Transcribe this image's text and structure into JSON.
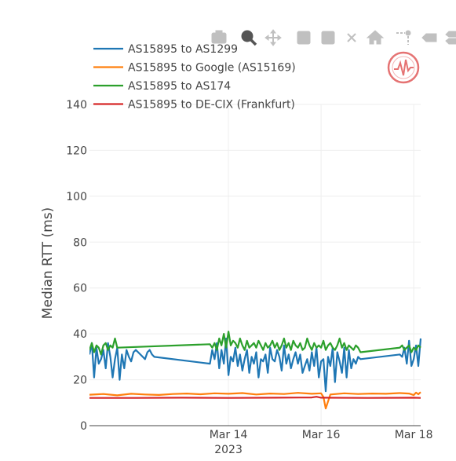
{
  "chart_data": {
    "type": "line",
    "title": "",
    "xlabel": "",
    "ylabel": "Median RTT (ms)",
    "ylim": [
      0,
      140
    ],
    "yticks": [
      0,
      20,
      40,
      60,
      80,
      100,
      120,
      140
    ],
    "xlim": [
      11.0,
      18.15
    ],
    "xticks": [
      {
        "value": 14,
        "label": "Mar 14",
        "sublabel": "2023"
      },
      {
        "value": 16,
        "label": "Mar 16",
        "sublabel": ""
      },
      {
        "value": 18,
        "label": "Mar 18",
        "sublabel": ""
      }
    ],
    "legend_position": "top-left",
    "series": [
      {
        "name": "AS15895 to AS1299",
        "color": "#1f77b4",
        "x": [
          11.0,
          11.05,
          11.1,
          11.15,
          11.2,
          11.25,
          11.3,
          11.35,
          11.4,
          11.45,
          11.5,
          11.55,
          11.6,
          11.65,
          11.7,
          11.75,
          11.8,
          11.85,
          11.9,
          11.95,
          12.0,
          12.05,
          12.1,
          12.15,
          12.2,
          12.25,
          12.3,
          12.35,
          12.4,
          13.6,
          13.65,
          13.7,
          13.75,
          13.8,
          13.85,
          13.9,
          13.95,
          14.0,
          14.05,
          14.1,
          14.15,
          14.2,
          14.25,
          14.3,
          14.35,
          14.4,
          14.45,
          14.5,
          14.55,
          14.6,
          14.65,
          14.7,
          14.75,
          14.8,
          14.85,
          14.9,
          14.95,
          15.0,
          15.05,
          15.1,
          15.15,
          15.2,
          15.25,
          15.3,
          15.35,
          15.4,
          15.45,
          15.5,
          15.55,
          15.6,
          15.65,
          15.7,
          15.75,
          15.8,
          15.85,
          15.9,
          15.95,
          16.0,
          16.05,
          16.1,
          16.15,
          16.2,
          16.25,
          16.3,
          16.35,
          16.4,
          16.45,
          16.5,
          16.55,
          16.6,
          16.65,
          16.7,
          16.75,
          16.8,
          16.85,
          17.7,
          17.75,
          17.8,
          17.85,
          17.9,
          17.95,
          18.0,
          18.05,
          18.1,
          18.15
        ],
        "values": [
          31,
          36,
          21,
          34,
          27,
          29,
          33,
          25,
          36,
          30,
          21,
          29,
          34,
          20,
          31,
          25,
          33,
          30,
          28,
          32,
          33,
          32,
          31,
          30,
          29,
          32,
          33,
          31,
          30,
          27,
          33,
          29,
          36,
          25,
          33,
          27,
          38,
          22,
          30,
          28,
          34,
          26,
          31,
          24,
          29,
          33,
          23,
          30,
          27,
          32,
          21,
          29,
          28,
          31,
          23,
          34,
          29,
          28,
          33,
          30,
          24,
          35,
          27,
          31,
          25,
          29,
          32,
          27,
          31,
          23,
          26,
          29,
          24,
          32,
          26,
          34,
          21,
          28,
          29,
          15,
          30,
          26,
          34,
          19,
          32,
          28,
          23,
          34,
          21,
          33,
          25,
          29,
          27,
          30,
          29,
          31,
          30,
          34,
          27,
          37,
          26,
          29,
          35,
          26,
          38
        ]
      },
      {
        "name": "AS15895 to Google (AS15169)",
        "color": "#ff7f0e",
        "x": [
          11.0,
          11.3,
          11.6,
          11.9,
          12.2,
          12.5,
          12.8,
          13.1,
          13.4,
          13.7,
          14.0,
          14.3,
          14.6,
          14.9,
          15.2,
          15.5,
          15.8,
          16.0,
          16.05,
          16.1,
          16.2,
          16.5,
          16.8,
          17.1,
          17.4,
          17.7,
          17.9,
          18.0,
          18.05,
          18.1,
          18.15
        ],
        "values": [
          13.5,
          13.8,
          13.2,
          13.9,
          13.6,
          13.4,
          13.8,
          14.0,
          13.7,
          14.1,
          13.9,
          14.2,
          13.6,
          14.0,
          13.8,
          14.3,
          13.9,
          14.1,
          12.5,
          7.5,
          13.6,
          14.1,
          13.8,
          14.0,
          13.9,
          14.2,
          14.0,
          13.3,
          14.4,
          13.7,
          14.6
        ]
      },
      {
        "name": "AS15895 to AS174",
        "color": "#2ca02c",
        "x": [
          11.0,
          11.05,
          11.1,
          11.15,
          11.2,
          11.25,
          11.3,
          11.35,
          11.4,
          11.45,
          11.5,
          11.55,
          11.6,
          13.6,
          13.65,
          13.7,
          13.75,
          13.8,
          13.85,
          13.9,
          13.95,
          14.0,
          14.05,
          14.1,
          14.15,
          14.2,
          14.25,
          14.3,
          14.35,
          14.4,
          14.45,
          14.5,
          14.55,
          14.6,
          14.65,
          14.7,
          14.75,
          14.8,
          14.85,
          14.9,
          14.95,
          15.0,
          15.05,
          15.1,
          15.15,
          15.2,
          15.25,
          15.3,
          15.35,
          15.4,
          15.45,
          15.5,
          15.55,
          15.6,
          15.65,
          15.7,
          15.75,
          15.8,
          15.85,
          15.9,
          15.95,
          16.0,
          16.05,
          16.1,
          16.15,
          16.2,
          16.25,
          16.3,
          16.35,
          16.4,
          16.45,
          16.5,
          16.55,
          16.6,
          16.65,
          16.7,
          16.75,
          16.8,
          16.85,
          17.7,
          17.75,
          17.8,
          17.85,
          17.9,
          17.95,
          18.0,
          18.05,
          18.1,
          18.15
        ],
        "values": [
          33,
          36,
          32,
          35,
          34,
          31,
          35,
          36,
          33,
          35,
          34,
          38,
          34,
          35.5,
          34,
          36,
          33,
          38,
          35,
          40,
          34,
          41,
          35,
          37,
          36,
          34,
          38,
          35,
          33,
          37,
          34,
          35,
          36,
          34,
          37,
          35,
          33,
          36,
          34,
          35,
          37,
          34,
          36,
          33,
          35,
          38,
          34,
          36,
          33,
          37,
          35,
          34,
          36,
          33,
          34,
          38,
          35,
          33,
          36,
          34,
          35,
          34,
          37,
          33,
          35,
          36,
          34,
          33,
          35,
          38,
          34,
          36,
          33,
          35,
          34,
          33,
          35,
          34,
          32,
          34,
          35,
          33,
          34,
          35,
          32,
          34,
          33,
          35,
          34
        ]
      },
      {
        "name": "AS15895 to DE-CIX (Frankfurt)",
        "color": "#d62728",
        "x": [
          11.0,
          12.0,
          13.0,
          14.0,
          15.0,
          15.8,
          15.9,
          16.0,
          17.0,
          18.0,
          18.15
        ],
        "values": [
          12.1,
          12.1,
          12.2,
          12.1,
          12.2,
          12.3,
          12.6,
          12.2,
          12.1,
          12.2,
          12.1
        ]
      }
    ]
  },
  "modebar": [
    {
      "name": "camera-icon",
      "title": "Download plot as a png"
    },
    {
      "name": "zoom-icon",
      "title": "Zoom"
    },
    {
      "name": "pan-icon",
      "title": "Pan"
    },
    {
      "name": "zoom-in-icon",
      "title": "Zoom in"
    },
    {
      "name": "zoom-out-icon",
      "title": "Zoom out"
    },
    {
      "name": "autoscale-icon",
      "title": "Autoscale"
    },
    {
      "name": "reset-axes-icon",
      "title": "Reset axes"
    },
    {
      "name": "spike-lines-icon",
      "title": "Toggle Spike Lines"
    },
    {
      "name": "hover-closest-icon",
      "title": "Show closest data on hover"
    },
    {
      "name": "hover-compare-icon",
      "title": "Compare data on hover"
    }
  ]
}
